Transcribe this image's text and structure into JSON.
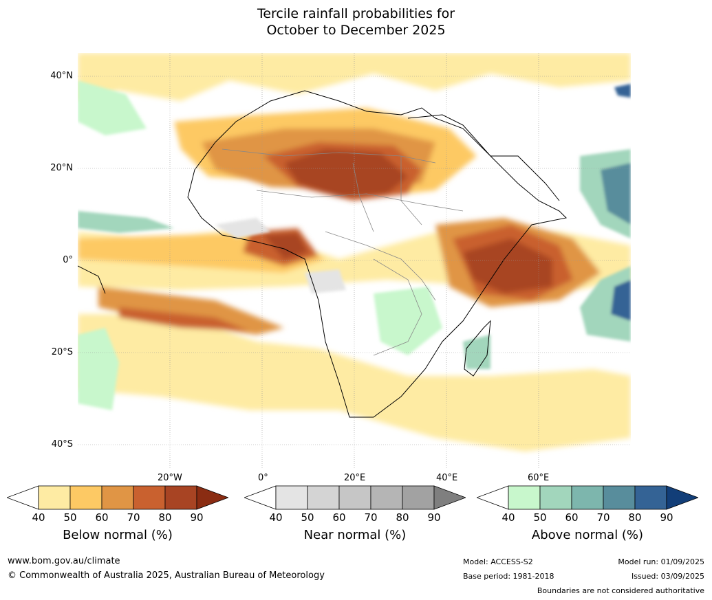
{
  "title_line1": "Tercile rainfall probabilities for",
  "title_line2": "October to December 2025",
  "lat_labels": [
    "40°N",
    "20°N",
    "0°",
    "20°S",
    "40°S"
  ],
  "lon_labels": [
    "20°W",
    "0°",
    "20°E",
    "40°E",
    "60°E"
  ],
  "colorbars": [
    {
      "title": "Below normal (%)",
      "ticks": [
        "40",
        "50",
        "60",
        "70",
        "80",
        "90"
      ],
      "colors": [
        "#ffffff",
        "#feeba3",
        "#fdc964",
        "#e09545",
        "#c9612f",
        "#a84423",
        "#8a2c12"
      ]
    },
    {
      "title": "Near normal (%)",
      "ticks": [
        "40",
        "50",
        "60",
        "70",
        "80",
        "90"
      ],
      "colors": [
        "#ffffff",
        "#e4e4e4",
        "#d4d4d4",
        "#c6c6c6",
        "#b5b5b5",
        "#a2a2a2",
        "#7f7f7f"
      ]
    },
    {
      "title": "Above normal (%)",
      "ticks": [
        "40",
        "50",
        "60",
        "70",
        "80",
        "90"
      ],
      "colors": [
        "#ffffff",
        "#c8f7cc",
        "#a2d6bc",
        "#7db6ad",
        "#588d9c",
        "#346395",
        "#123e78"
      ]
    }
  ],
  "footer": {
    "website": "www.bom.gov.au/climate",
    "copyright": "© Commonwealth of Australia 2025, Australian Bureau of Meteorology",
    "model": "Model: ACCESS-S2",
    "base_period": "Base period: 1981-2018",
    "model_run": "Model run: 01/09/2025",
    "issued": "Issued: 03/09/2025",
    "boundaries": "Boundaries are not considered authoritative"
  }
}
